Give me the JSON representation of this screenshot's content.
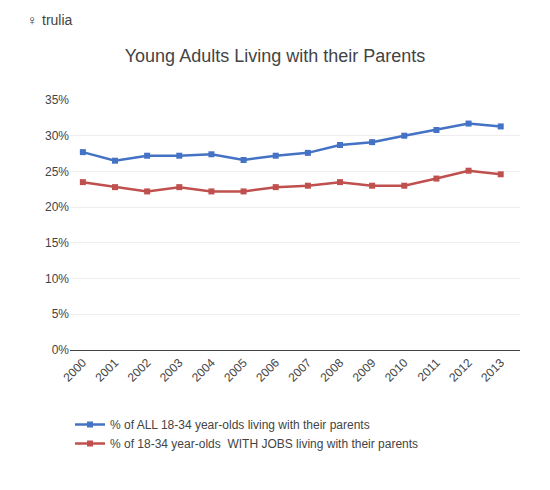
{
  "chart_data": {
    "type": "line",
    "title": "Young Adults Living with their Parents",
    "annotations": [
      "♀",
      "trulia"
    ],
    "x": [
      2000,
      2001,
      2002,
      2003,
      2004,
      2005,
      2006,
      2007,
      2008,
      2009,
      2010,
      2011,
      2012,
      2013
    ],
    "series": [
      {
        "name": "% of ALL 18-34 year-olds living with their parents",
        "color": "#4472C4",
        "marker": "square",
        "values": [
          0.277,
          0.265,
          0.272,
          0.272,
          0.274,
          0.266,
          0.272,
          0.276,
          0.287,
          0.291,
          0.3,
          0.308,
          0.317,
          0.313
        ]
      },
      {
        "name": "% of 18-34 year-olds  WITH JOBS living with their parents",
        "color": "#C0504D",
        "marker": "square",
        "values": [
          0.235,
          0.228,
          0.222,
          0.228,
          0.222,
          0.222,
          0.228,
          0.23,
          0.235,
          0.23,
          0.23,
          0.24,
          0.251,
          0.246
        ]
      }
    ],
    "xlim": [
      1999.6,
      2013.6
    ],
    "xticks": [
      2000,
      2001,
      2002,
      2003,
      2004,
      2005,
      2006,
      2007,
      2008,
      2009,
      2010,
      2011,
      2012,
      2013
    ],
    "ylim": [
      0,
      0.35
    ],
    "yticks": [
      {
        "value": 0.0,
        "label": "0%"
      },
      {
        "value": 0.05,
        "label": "5%"
      },
      {
        "value": 0.1,
        "label": "10%"
      },
      {
        "value": 0.15,
        "label": "15%"
      },
      {
        "value": 0.2,
        "label": "20%"
      },
      {
        "value": 0.25,
        "label": "25%"
      },
      {
        "value": 0.3,
        "label": "30%"
      },
      {
        "value": 0.35,
        "label": "35%"
      }
    ],
    "grid": "y",
    "legend": "bottom"
  }
}
